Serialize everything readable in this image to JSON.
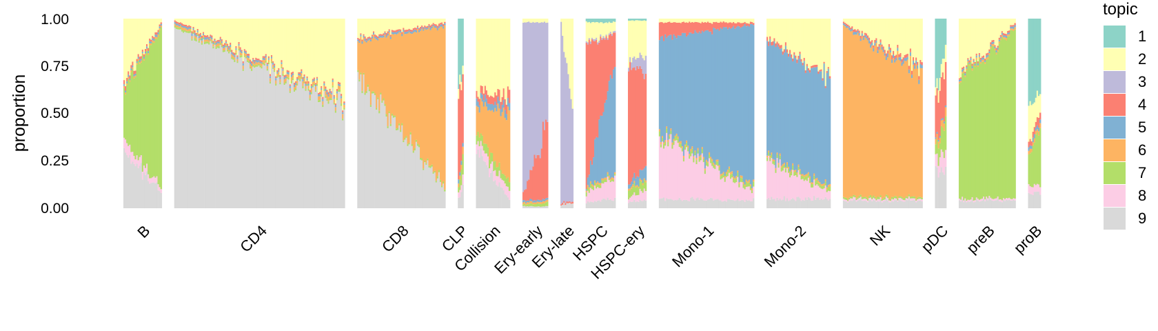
{
  "chart_data": {
    "type": "structure-plot",
    "title": "",
    "ylabel": "proportion",
    "ylim": [
      0,
      1
    ],
    "yticks": [
      "0.00",
      "0.25",
      "0.50",
      "0.75",
      "1.00"
    ],
    "categories": [
      "B",
      "CD4",
      "CD8",
      "CLP",
      "Collision",
      "Ery-early",
      "Ery-late",
      "HSPC",
      "HSPC-ery",
      "Mono-1",
      "Mono-2",
      "NK",
      "pDC",
      "preB",
      "proB"
    ],
    "legend": {
      "title": "topic",
      "position": "right",
      "items": [
        {
          "label": "1",
          "color": "#8dd3c7"
        },
        {
          "label": "2",
          "color": "#ffffb3"
        },
        {
          "label": "3",
          "color": "#bebada"
        },
        {
          "label": "4",
          "color": "#fb8072"
        },
        {
          "label": "5",
          "color": "#80b1d3"
        },
        {
          "label": "6",
          "color": "#fdb462"
        },
        {
          "label": "7",
          "color": "#b3de69"
        },
        {
          "label": "8",
          "color": "#fccde5"
        },
        {
          "label": "9",
          "color": "#d9d9d9"
        }
      ]
    },
    "groups": [
      {
        "label": "B",
        "n": 27,
        "from": [
          0,
          0.35,
          0,
          0.02,
          0.01,
          0.01,
          0.25,
          0.06,
          0.3
        ],
        "to": [
          0,
          0.02,
          0,
          0.01,
          0.01,
          0.01,
          0.85,
          0.02,
          0.08
        ]
      },
      {
        "label": "CD4",
        "n": 120,
        "from": [
          0,
          0.01,
          0,
          0.01,
          0.01,
          0.01,
          0.01,
          0,
          0.95
        ],
        "to": [
          0,
          0.42,
          0,
          0.01,
          0.01,
          0.02,
          0.01,
          0,
          0.53
        ]
      },
      {
        "label": "CD8",
        "n": 62,
        "from": [
          0,
          0.1,
          0,
          0.01,
          0.01,
          0.18,
          0.01,
          0,
          0.69
        ],
        "to": [
          0,
          0.02,
          0,
          0.01,
          0.01,
          0.83,
          0.01,
          0,
          0.11
        ]
      },
      {
        "label": "CLP",
        "n": 4,
        "from": [
          0.35,
          0.05,
          0,
          0.45,
          0.02,
          0.02,
          0.03,
          0.03,
          0.05
        ],
        "to": [
          0.25,
          0.05,
          0,
          0.4,
          0.02,
          0.03,
          0.1,
          0.05,
          0.1
        ]
      },
      {
        "label": "Collision",
        "n": 24,
        "from": [
          0,
          0.4,
          0,
          0.03,
          0.03,
          0.14,
          0.05,
          0.05,
          0.3
        ],
        "to": [
          0,
          0.4,
          0,
          0.06,
          0.04,
          0.36,
          0.04,
          0.05,
          0.05
        ]
      },
      {
        "label": "Ery-early",
        "n": 18,
        "from": [
          0,
          0.02,
          0.9,
          0.04,
          0.01,
          0.01,
          0.01,
          0,
          0.01
        ],
        "to": [
          0,
          0.02,
          0.55,
          0.38,
          0.01,
          0.01,
          0.02,
          0,
          0.01
        ]
      },
      {
        "label": "Ery-late",
        "n": 9,
        "from": [
          0,
          0.02,
          0.95,
          0.01,
          0,
          0,
          0,
          0,
          0.02
        ],
        "to": [
          0,
          0.5,
          0.46,
          0.01,
          0,
          0,
          0,
          0,
          0.03
        ]
      },
      {
        "label": "HSPC",
        "n": 21,
        "from": [
          0.02,
          0.1,
          0.01,
          0.75,
          0.01,
          0.01,
          0.02,
          0.05,
          0.03
        ],
        "to": [
          0.02,
          0.05,
          0.01,
          0.15,
          0.6,
          0.01,
          0.01,
          0.1,
          0.05
        ]
      },
      {
        "label": "HSPC-ery",
        "n": 13,
        "from": [
          0.01,
          0.2,
          0.02,
          0.65,
          0.02,
          0.01,
          0.04,
          0.02,
          0.03
        ],
        "to": [
          0.01,
          0.2,
          0.1,
          0.45,
          0.07,
          0.01,
          0.05,
          0.06,
          0.05
        ]
      },
      {
        "label": "Mono-1",
        "n": 67,
        "from": [
          0,
          0.02,
          0,
          0.08,
          0.5,
          0.01,
          0.02,
          0.32,
          0.05
        ],
        "to": [
          0,
          0.02,
          0,
          0.01,
          0.85,
          0.01,
          0.02,
          0.05,
          0.04
        ]
      },
      {
        "label": "Mono-2",
        "n": 45,
        "from": [
          0,
          0.1,
          0,
          0.02,
          0.6,
          0.01,
          0.02,
          0.2,
          0.05
        ],
        "to": [
          0,
          0.3,
          0,
          0.01,
          0.57,
          0.01,
          0.02,
          0.04,
          0.05
        ]
      },
      {
        "label": "NK",
        "n": 56,
        "from": [
          0,
          0.02,
          0,
          0.01,
          0.01,
          0.9,
          0.01,
          0.01,
          0.04
        ],
        "to": [
          0,
          0.25,
          0,
          0.02,
          0.02,
          0.65,
          0.01,
          0.01,
          0.04
        ]
      },
      {
        "label": "pDC",
        "n": 8,
        "from": [
          0.4,
          0.05,
          0,
          0.2,
          0.01,
          0.03,
          0.05,
          0.06,
          0.2
        ],
        "to": [
          0.15,
          0.1,
          0,
          0.25,
          0.01,
          0.04,
          0.15,
          0.1,
          0.2
        ]
      },
      {
        "label": "preB",
        "n": 40,
        "from": [
          0,
          0.3,
          0,
          0.01,
          0.01,
          0.01,
          0.62,
          0.01,
          0.04
        ],
        "to": [
          0,
          0.02,
          0,
          0.01,
          0.01,
          0.01,
          0.9,
          0.01,
          0.04
        ]
      },
      {
        "label": "proB",
        "n": 9,
        "from": [
          0.45,
          0.2,
          0,
          0.03,
          0.02,
          0.02,
          0.15,
          0.05,
          0.08
        ],
        "to": [
          0.4,
          0.1,
          0,
          0.04,
          0.02,
          0.02,
          0.3,
          0.04,
          0.08
        ]
      }
    ]
  }
}
